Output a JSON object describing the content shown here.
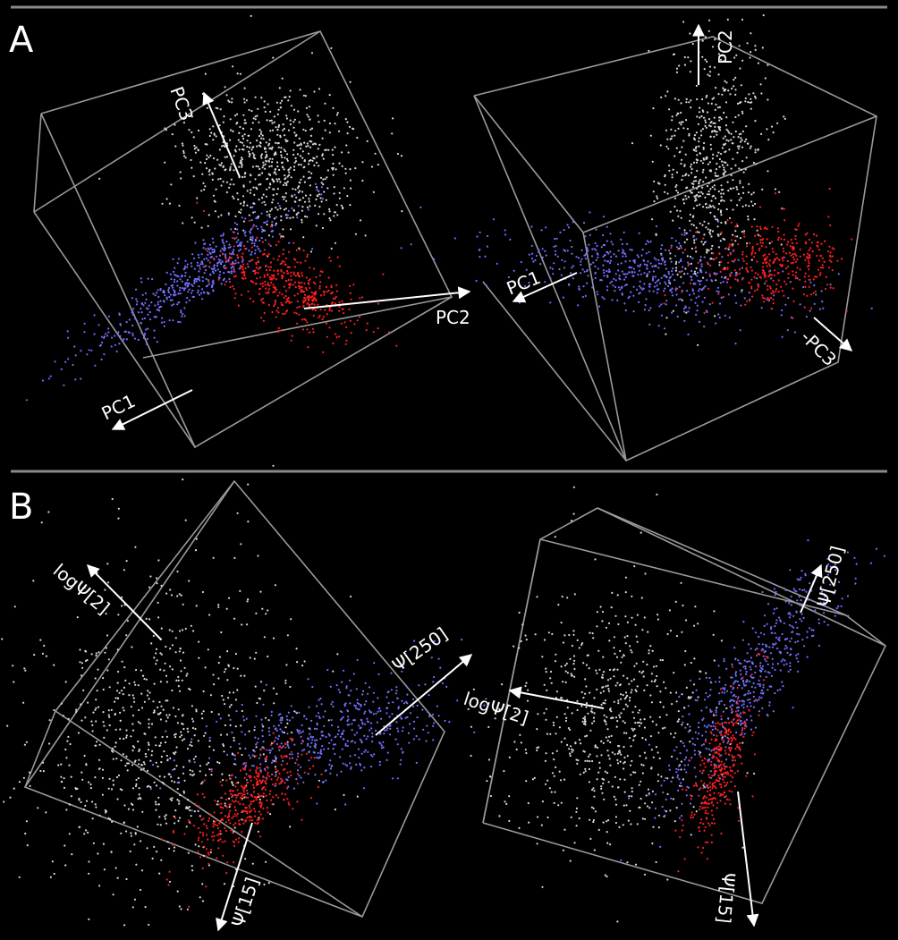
{
  "panels": [
    {
      "label": "A",
      "views": [
        {
          "axes": [
            "PC1",
            "PC2",
            "PC3"
          ]
        },
        {
          "axes": [
            "PC1",
            "PC2",
            "-PC3"
          ]
        }
      ]
    },
    {
      "label": "B",
      "views": [
        {
          "axes": [
            "logΨ[2]",
            "Ψ[250]",
            "Ψ[15]"
          ]
        },
        {
          "axes": [
            "logΨ[2]",
            "Ψ[250]",
            "Ψ[15]"
          ]
        }
      ]
    }
  ],
  "chart_data": [
    {
      "type": "scatter",
      "dimensions": 3,
      "panel": "A",
      "view": 1,
      "axes": [
        "PC1",
        "PC2",
        "PC3"
      ],
      "series": [
        {
          "color": "#d8d8d8",
          "density": "dense cloud along +PC3, upper region"
        },
        {
          "color": "#7070ff",
          "density": "elongated band extending toward +PC1"
        },
        {
          "color": "#ff2020",
          "density": "compact cluster extending toward +PC2"
        }
      ]
    },
    {
      "type": "scatter",
      "dimensions": 3,
      "panel": "A",
      "view": 2,
      "axes": [
        "PC1",
        "PC2",
        "-PC3"
      ],
      "series": [
        {
          "color": "#d8d8d8",
          "density": "vertical cloud along +PC2"
        },
        {
          "color": "#7070ff",
          "density": "curved band toward +PC1"
        },
        {
          "color": "#ff2020",
          "density": "cluster toward -PC3"
        }
      ]
    },
    {
      "type": "scatter",
      "dimensions": 3,
      "panel": "B",
      "view": 1,
      "axes": [
        "logΨ[2]",
        "Ψ[250]",
        "Ψ[15]"
      ],
      "series": [
        {
          "color": "#d8d8d8",
          "density": "large cloud toward logΨ[2]"
        },
        {
          "color": "#7070ff",
          "density": "wedge toward Ψ[250]"
        },
        {
          "color": "#ff2020",
          "density": "band toward Ψ[15]"
        }
      ]
    },
    {
      "type": "scatter",
      "dimensions": 3,
      "panel": "B",
      "view": 2,
      "axes": [
        "logΨ[2]",
        "Ψ[250]",
        "Ψ[15]"
      ],
      "series": [
        {
          "color": "#d8d8d8",
          "density": "cloud toward logΨ[2]"
        },
        {
          "color": "#7070ff",
          "density": "diagonal band toward Ψ[250]"
        },
        {
          "color": "#ff2020",
          "density": "narrow band toward Ψ[15]"
        }
      ]
    }
  ]
}
